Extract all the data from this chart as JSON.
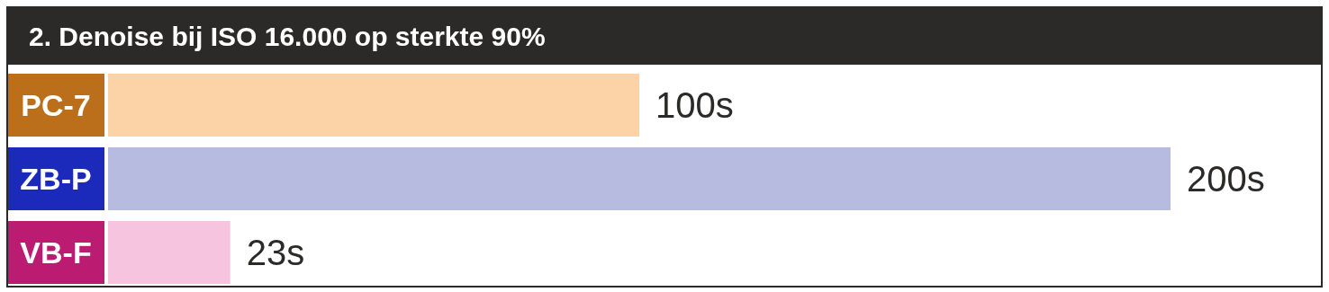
{
  "chart_data": {
    "type": "bar",
    "orientation": "horizontal",
    "title": "2. Denoise bij ISO 16.000 op sterkte 90%",
    "categories": [
      "PC-7",
      "ZB-P",
      "VB-F"
    ],
    "values": [
      100,
      200,
      23
    ],
    "colors": [
      "#fbd3a7",
      "#b7bbe0",
      "#f7c4df"
    ],
    "value_labels": [
      "100s",
      "200s",
      "23s"
    ]
  }
}
